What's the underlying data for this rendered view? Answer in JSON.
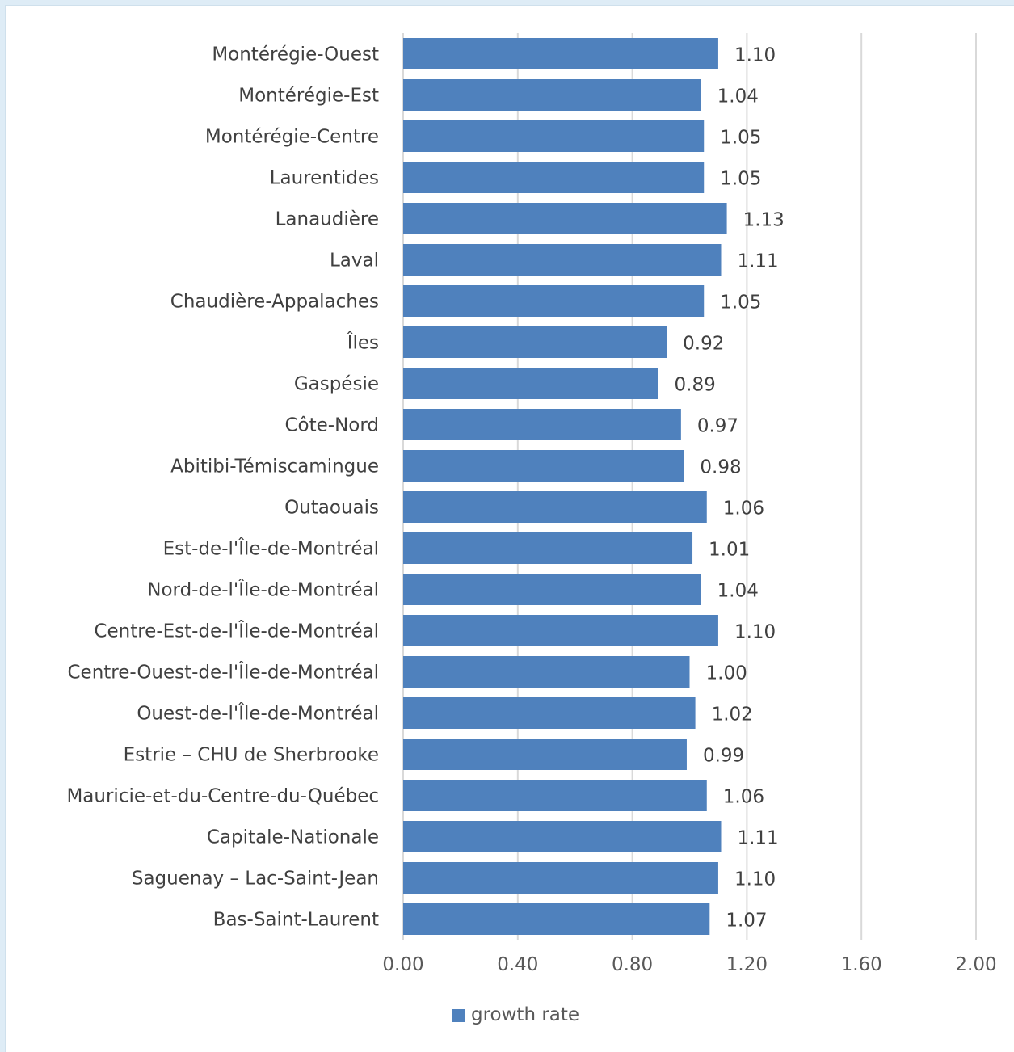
{
  "chart_data": {
    "type": "bar",
    "orientation": "horizontal",
    "categories": [
      "Montérégie-Ouest",
      "Montérégie-Est",
      "Montérégie-Centre",
      "Laurentides",
      "Lanaudière",
      "Laval",
      "Chaudière-Appalaches",
      "Îles",
      "Gaspésie",
      "Côte-Nord",
      "Abitibi-Témiscamingue",
      "Outaouais",
      "Est-de-l'Île-de-Montréal",
      "Nord-de-l'Île-de-Montréal",
      "Centre-Est-de-l'Île-de-Montréal",
      "Centre-Ouest-de-l'Île-de-Montréal",
      "Ouest-de-l'Île-de-Montréal",
      "Estrie – CHU de Sherbrooke",
      "Mauricie-et-du-Centre-du-Québec",
      "Capitale-Nationale",
      "Saguenay – Lac-Saint-Jean",
      "Bas-Saint-Laurent"
    ],
    "series": [
      {
        "name": "growth rate",
        "values": [
          1.1,
          1.04,
          1.05,
          1.05,
          1.13,
          1.11,
          1.05,
          0.92,
          0.89,
          0.97,
          0.98,
          1.06,
          1.01,
          1.04,
          1.1,
          1.0,
          1.02,
          0.99,
          1.06,
          1.11,
          1.1,
          1.07
        ],
        "value_labels": [
          "1.10",
          "1.04",
          "1.05",
          "1.05",
          "1.13",
          "1.11",
          "1.05",
          "0.92",
          "0.89",
          "0.97",
          "0.98",
          "1.06",
          "1.01",
          "1.04",
          "1.10",
          "1.00",
          "1.02",
          "0.99",
          "1.06",
          "1.11",
          "1.10",
          "1.07"
        ],
        "color": "#4f81bd"
      }
    ],
    "xlim": [
      0,
      2
    ],
    "xticks": [
      "0.00",
      "0.40",
      "0.80",
      "1.20",
      "1.60",
      "2.00"
    ],
    "title": "",
    "xlabel": "",
    "ylabel": "",
    "grid": true,
    "legend": "bottom"
  },
  "colors": {
    "bar": "#4f81bd",
    "grid": "#d9d9d9",
    "text": "#404040"
  }
}
